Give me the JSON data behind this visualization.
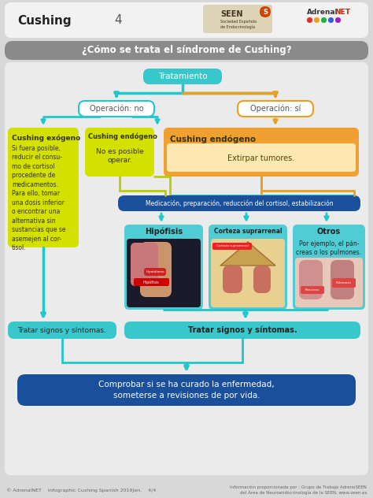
{
  "title": "Cushing",
  "page_num": "4",
  "main_question": "¿Cómo se trata el síndrome de Cushing?",
  "bg_color": "#d8d8d8",
  "panel_bg": "#ebebeb",
  "header_bg": "#f2f2f2",
  "question_bar_color": "#8a8a8a",
  "teal": "#1ec8cc",
  "teal_arrow": "#1ec8cc",
  "orange_arrow": "#e8a020",
  "yellow_green": "#b8cc00",
  "yellow_green_light": "#d4e000",
  "orange": "#f0a030",
  "orange_light": "#fce8b0",
  "blue_dark": "#1a4f9c",
  "teal_box": "#38c8cc",
  "teal_subbox": "#50ccd4",
  "teal_tratar": "#38c8cc",
  "footer_color": "#aaaaaa",
  "white": "#ffffff",
  "dark_text": "#333333",
  "med_text": "#555555"
}
